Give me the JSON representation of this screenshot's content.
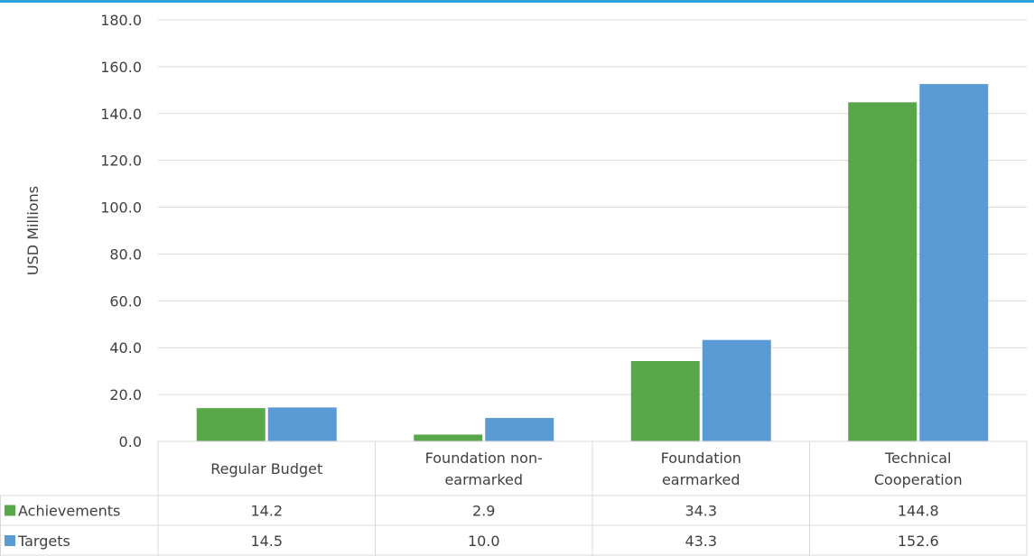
{
  "colors": {
    "accent_line": "#2ea3dc",
    "achievements": "#58a84a",
    "targets": "#5b9bd5",
    "grid": "#d9d9d9"
  },
  "chart_data": {
    "type": "bar",
    "ylabel": "USD Millions",
    "ylim": [
      0,
      180
    ],
    "yticks": [
      "0.0",
      "20.0",
      "40.0",
      "60.0",
      "80.0",
      "100.0",
      "120.0",
      "140.0",
      "160.0",
      "180.0"
    ],
    "grid": true,
    "categories": [
      [
        "Regular Budget"
      ],
      [
        "Foundation non-",
        "earmarked"
      ],
      [
        "Foundation",
        "earmarked"
      ],
      [
        "Technical",
        "Cooperation"
      ]
    ],
    "series": [
      {
        "name": "Achievements",
        "values": [
          14.2,
          2.9,
          34.3,
          144.8
        ],
        "labels": [
          "14.2",
          "2.9",
          "34.3",
          "144.8"
        ]
      },
      {
        "name": "Targets",
        "values": [
          14.5,
          10.0,
          43.3,
          152.6
        ],
        "labels": [
          "14.5",
          "10.0",
          "43.3",
          "152.6"
        ]
      }
    ]
  }
}
